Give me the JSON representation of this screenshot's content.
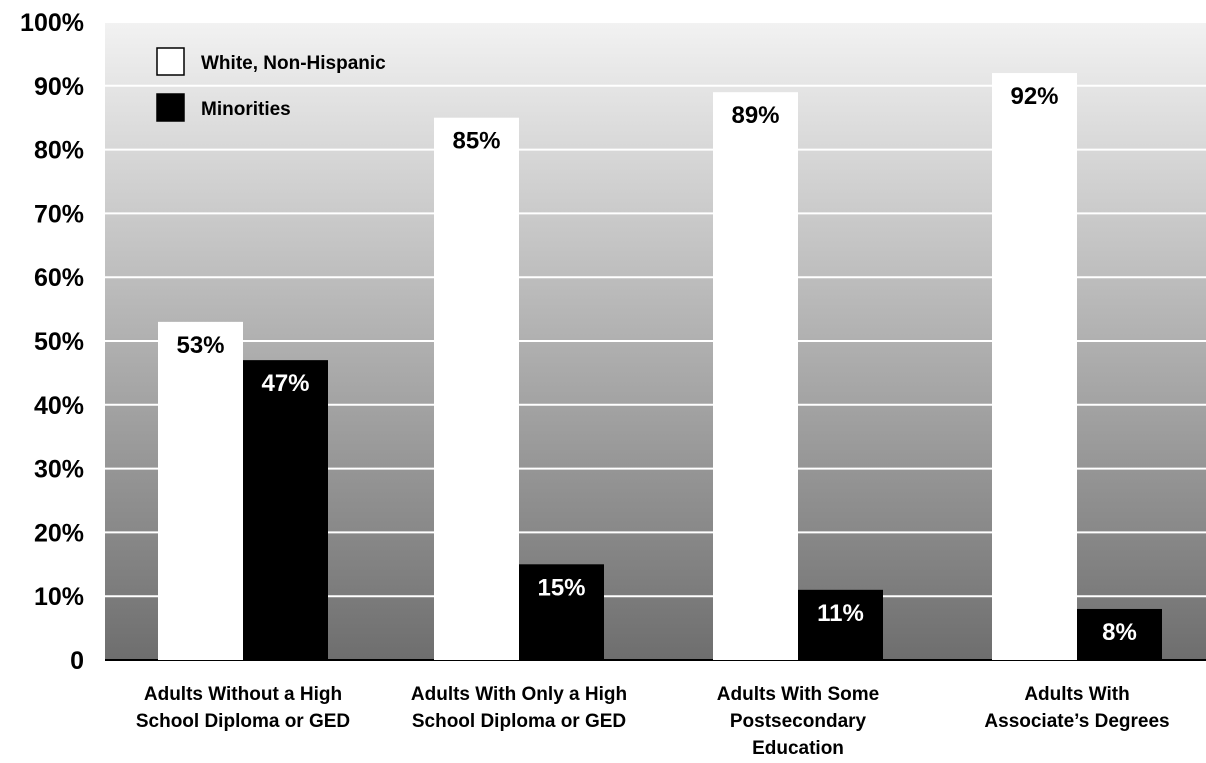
{
  "chart_data": {
    "type": "bar",
    "categories": [
      [
        "Adults  Without a High",
        "School Diploma or GED"
      ],
      [
        "Adults  With Only a High",
        "School Diploma or GED"
      ],
      [
        "Adults  With Some",
        "Postsecondary",
        "Education"
      ],
      [
        "Adults  With",
        "Associate’s Degrees"
      ]
    ],
    "series": [
      {
        "name": "White, Non-Hispanic",
        "color": "#ffffff",
        "values": [
          53,
          85,
          89,
          92
        ],
        "labels": [
          "53%",
          "85%",
          "89%",
          "92%"
        ]
      },
      {
        "name": "Minorities",
        "color": "#000000",
        "values": [
          47,
          15,
          11,
          8
        ],
        "labels": [
          "47%",
          "15%",
          "11%",
          "8%"
        ]
      }
    ],
    "ylim": [
      0,
      100
    ],
    "yticks": [
      0,
      10,
      20,
      30,
      40,
      50,
      60,
      70,
      80,
      90,
      100
    ],
    "ytick_labels": [
      "0",
      "10%",
      "20%",
      "30%",
      "40%",
      "50%",
      "60%",
      "70%",
      "80%",
      "90%",
      "100%"
    ],
    "grid": true,
    "legend_position": "top-left",
    "background_gradient": [
      "#f2f2f2",
      "#6e6e6e"
    ]
  }
}
